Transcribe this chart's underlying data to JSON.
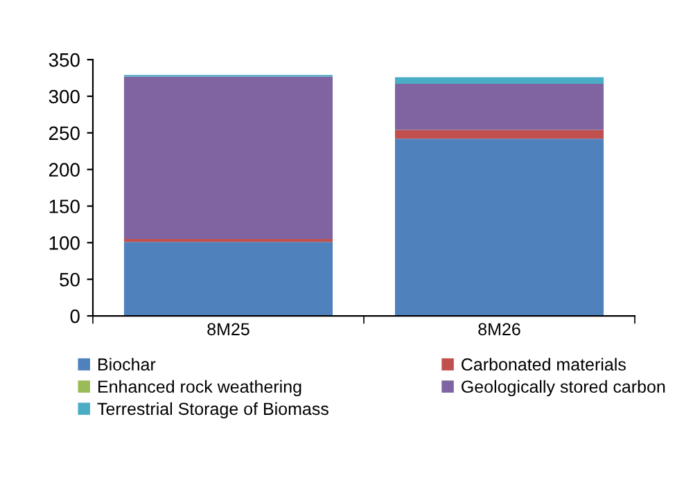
{
  "chart_data": {
    "type": "bar",
    "stacked": true,
    "categories": [
      "8M25",
      "8M26"
    ],
    "series": [
      {
        "name": "Biochar",
        "color": "#4f81bd",
        "values": [
          101,
          242
        ]
      },
      {
        "name": "Carbonated materials",
        "color": "#c0504d",
        "values": [
          4,
          12
        ]
      },
      {
        "name": "Enhanced rock weathering",
        "color": "#9bbb59",
        "values": [
          0,
          0
        ]
      },
      {
        "name": "Geologically stored carbon",
        "color": "#8064a2",
        "values": [
          222,
          63
        ]
      },
      {
        "name": "Terrestrial Storage of Biomass",
        "color": "#4bacc6",
        "values": [
          2,
          9
        ]
      }
    ],
    "ylim": [
      0,
      350
    ],
    "yticks": [
      0,
      50,
      100,
      150,
      200,
      250,
      300,
      350
    ],
    "grid": false,
    "legend": "bottom"
  }
}
